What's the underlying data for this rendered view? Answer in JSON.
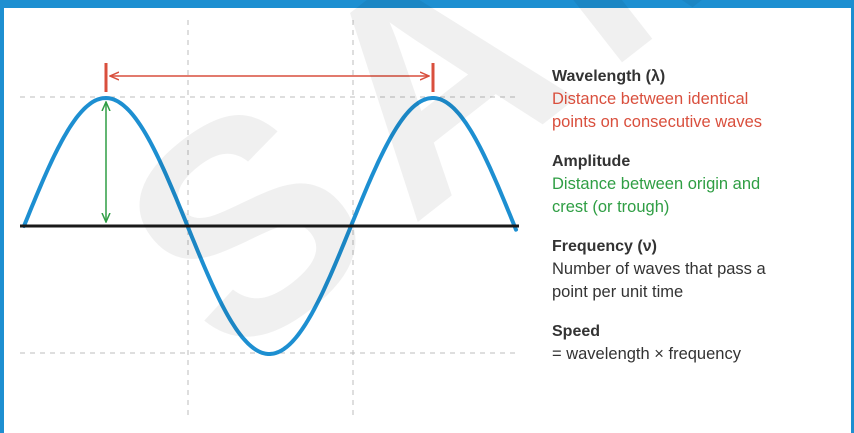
{
  "colors": {
    "frame": "#1d8fd1",
    "wave": "#1d8fd1",
    "baseline": "#1a1a1a",
    "guides": "#bdbdbd",
    "wavelength": "#d94f3d",
    "amplitude": "#2f9e44",
    "text": "#333333"
  },
  "watermark": "SAMPLE",
  "legend": {
    "items": [
      {
        "name": "wavelength",
        "title": "Wavelength (λ)",
        "desc1": "Distance between identical",
        "desc2": "points on consecutive waves",
        "color": "#d94f3d"
      },
      {
        "name": "amplitude",
        "title": "Amplitude",
        "desc1": "Distance between origin and",
        "desc2": "crest (or trough)",
        "color": "#2f9e44"
      },
      {
        "name": "frequency",
        "title": "Frequency (ν)",
        "desc1": "Number of waves that pass a",
        "desc2": "point per unit time",
        "color": "#333333"
      },
      {
        "name": "speed",
        "title": "Speed",
        "desc1": "= wavelength × frequency",
        "desc2": "",
        "color": "#333333"
      }
    ]
  }
}
